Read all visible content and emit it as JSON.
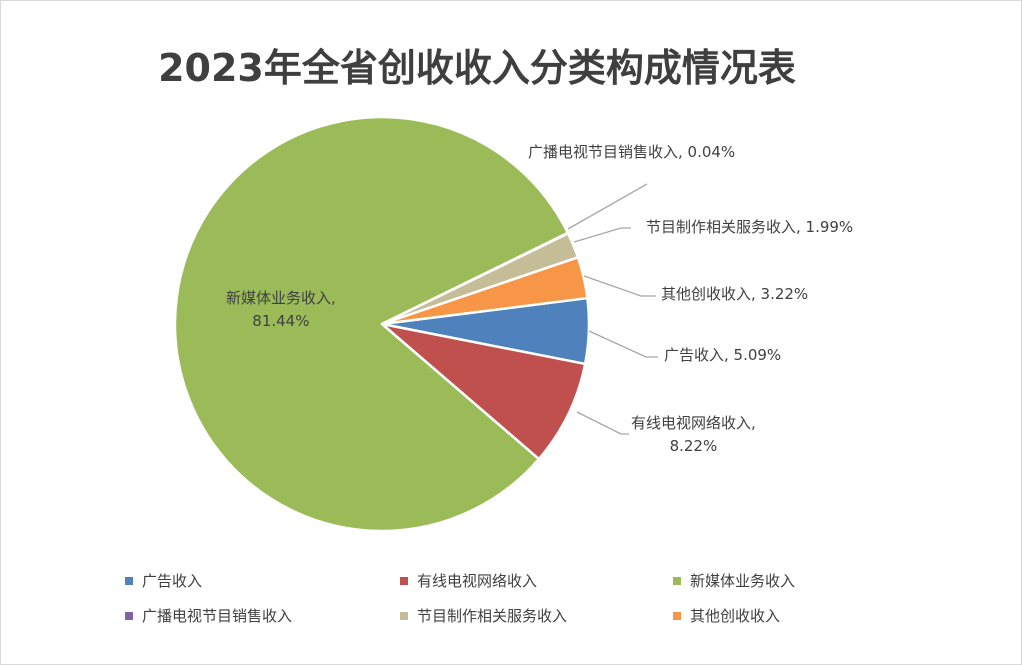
{
  "chart_data": {
    "type": "pie",
    "title": "2023年全省创收收入分类构成情况表",
    "categories": [
      "广告收入",
      "有线电视网络收入",
      "新媒体业务收入",
      "广播电视节目销售收入",
      "节目制作相关服务收入",
      "其他创收收入"
    ],
    "values": [
      5.09,
      8.22,
      81.44,
      0.04,
      1.99,
      3.22
    ],
    "unit": "%",
    "data_labels": [
      "广告收入, 5.09%",
      "有线电视网络收入,",
      "新媒体业务收入,",
      "广播电视节目销售收入, 0.04%",
      "节目制作相关服务收入, 1.99%",
      "其他创收收入, 3.22%"
    ],
    "data_labels_line2": {
      "1": "8.22%",
      "2": "81.44%"
    },
    "colors": [
      "#4f81bd",
      "#c0504d",
      "#9bbb59",
      "#8064a2",
      "#c4bd97",
      "#f79646"
    ],
    "legend": {
      "position": "bottom",
      "entries": [
        "广告收入",
        "有线电视网络收入",
        "新媒体业务收入",
        "广播电视节目销售收入",
        "节目制作相关服务收入",
        "其他创收收入"
      ]
    }
  }
}
